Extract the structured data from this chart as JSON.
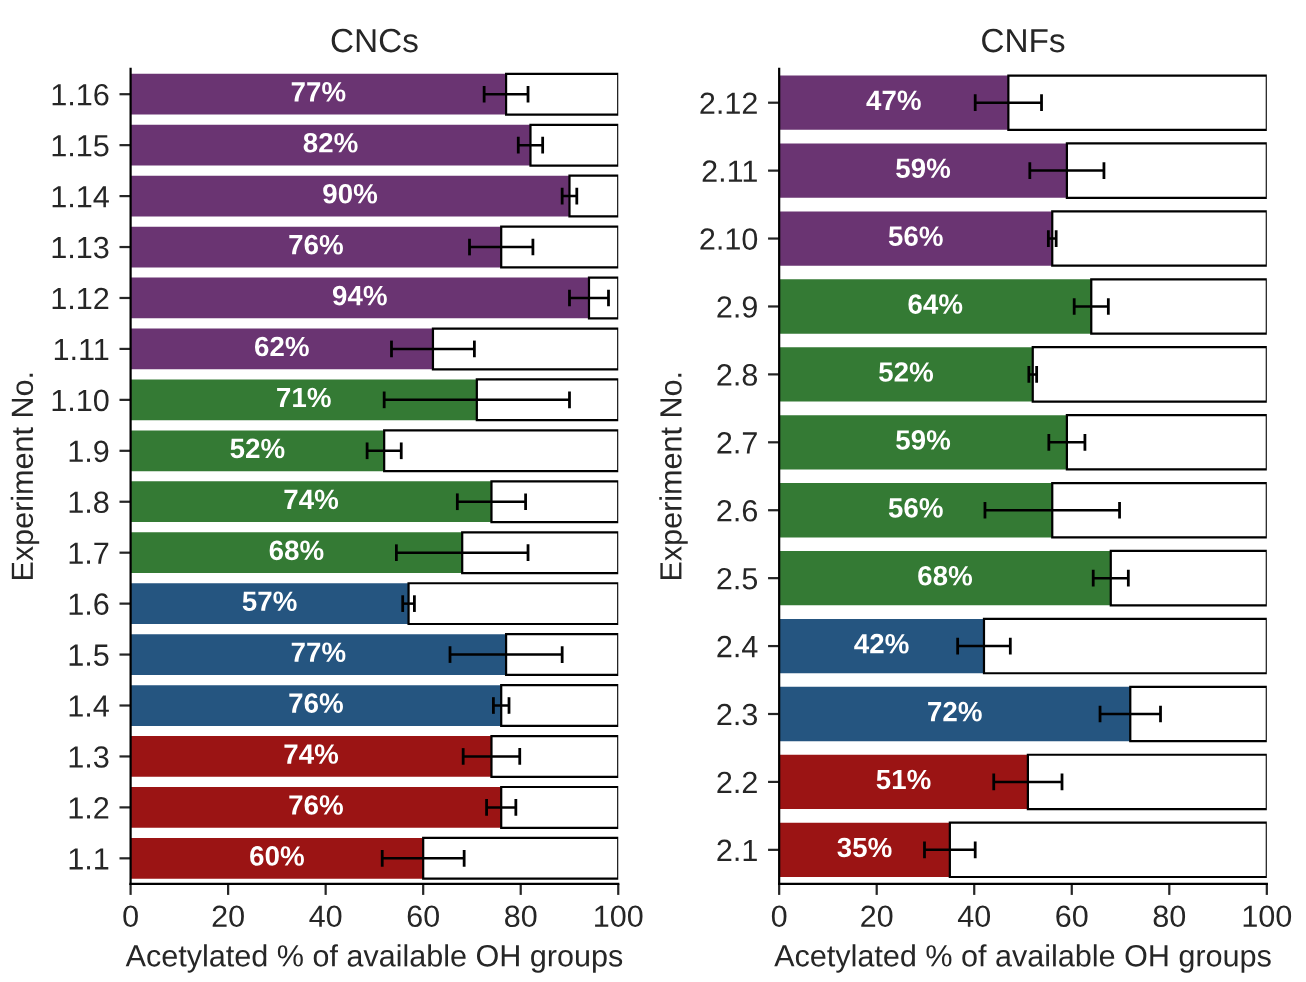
{
  "chart_data": [
    {
      "type": "bar",
      "orientation": "horizontal",
      "stacked": true,
      "title": "CNCs",
      "xlabel": "Acetylated % of available OH groups",
      "ylabel": "Experiment No.",
      "categories": [
        "1.16",
        "1.15",
        "1.14",
        "1.13",
        "1.12",
        "1.11",
        "1.10",
        "1.9",
        "1.8",
        "1.7",
        "1.6",
        "1.5",
        "1.4",
        "1.3",
        "1.2",
        "1.1"
      ],
      "series": [
        {
          "values": [
            77,
            82,
            90,
            76,
            94,
            62,
            71,
            52,
            74,
            68,
            57,
            77,
            76,
            74,
            76,
            60
          ],
          "colors": [
            "#6a3472",
            "#6a3472",
            "#6a3472",
            "#6a3472",
            "#6a3472",
            "#6a3472",
            "#347a34",
            "#347a34",
            "#347a34",
            "#347a34",
            "#255580",
            "#255580",
            "#255580",
            "#9b1414",
            "#9b1414",
            "#9b1414"
          ],
          "errors": [
            4.5,
            2.5,
            1.5,
            6.5,
            4,
            8.5,
            19,
            3.5,
            7,
            13.5,
            1.2,
            11.5,
            1.6,
            5.8,
            3,
            8.4
          ],
          "value_labels": [
            "77%",
            "82%",
            "90%",
            "76%",
            "94%",
            "62%",
            "71%",
            "52%",
            "74%",
            "68%",
            "57%",
            "77%",
            "76%",
            "74%",
            "76%",
            "60%"
          ]
        },
        {
          "values": [
            23,
            18,
            10,
            24,
            6,
            38,
            29,
            48,
            26,
            32,
            43,
            23,
            24,
            26,
            24,
            40
          ],
          "color": "#ffffff"
        }
      ],
      "xlim": [
        0,
        100
      ],
      "xticks": [
        0,
        20,
        40,
        60,
        80,
        100
      ],
      "grid": false,
      "legend": false
    },
    {
      "type": "bar",
      "orientation": "horizontal",
      "stacked": true,
      "title": "CNFs",
      "xlabel": "Acetylated % of available OH groups",
      "ylabel": "Experiment No.",
      "categories": [
        "2.12",
        "2.11",
        "2.10",
        "2.9",
        "2.8",
        "2.7",
        "2.6",
        "2.5",
        "2.4",
        "2.3",
        "2.2",
        "2.1"
      ],
      "series": [
        {
          "values": [
            47,
            59,
            56,
            64,
            52,
            59,
            56,
            68,
            42,
            72,
            51,
            35
          ],
          "colors": [
            "#6a3472",
            "#6a3472",
            "#6a3472",
            "#347a34",
            "#347a34",
            "#347a34",
            "#347a34",
            "#347a34",
            "#255580",
            "#255580",
            "#9b1414",
            "#9b1414"
          ],
          "errors": [
            6.8,
            7.6,
            0.8,
            3.5,
            0.8,
            3.7,
            13.8,
            3.6,
            5.4,
            6.2,
            7,
            5.2
          ],
          "value_labels": [
            "47%",
            "59%",
            "56%",
            "64%",
            "52%",
            "59%",
            "56%",
            "68%",
            "42%",
            "72%",
            "51%",
            "35%"
          ]
        },
        {
          "values": [
            53,
            41,
            44,
            36,
            48,
            41,
            44,
            32,
            58,
            28,
            49,
            65
          ],
          "color": "#ffffff"
        }
      ],
      "xlim": [
        0,
        100
      ],
      "xticks": [
        0,
        20,
        40,
        60,
        80,
        100
      ],
      "grid": false,
      "legend": false
    }
  ]
}
